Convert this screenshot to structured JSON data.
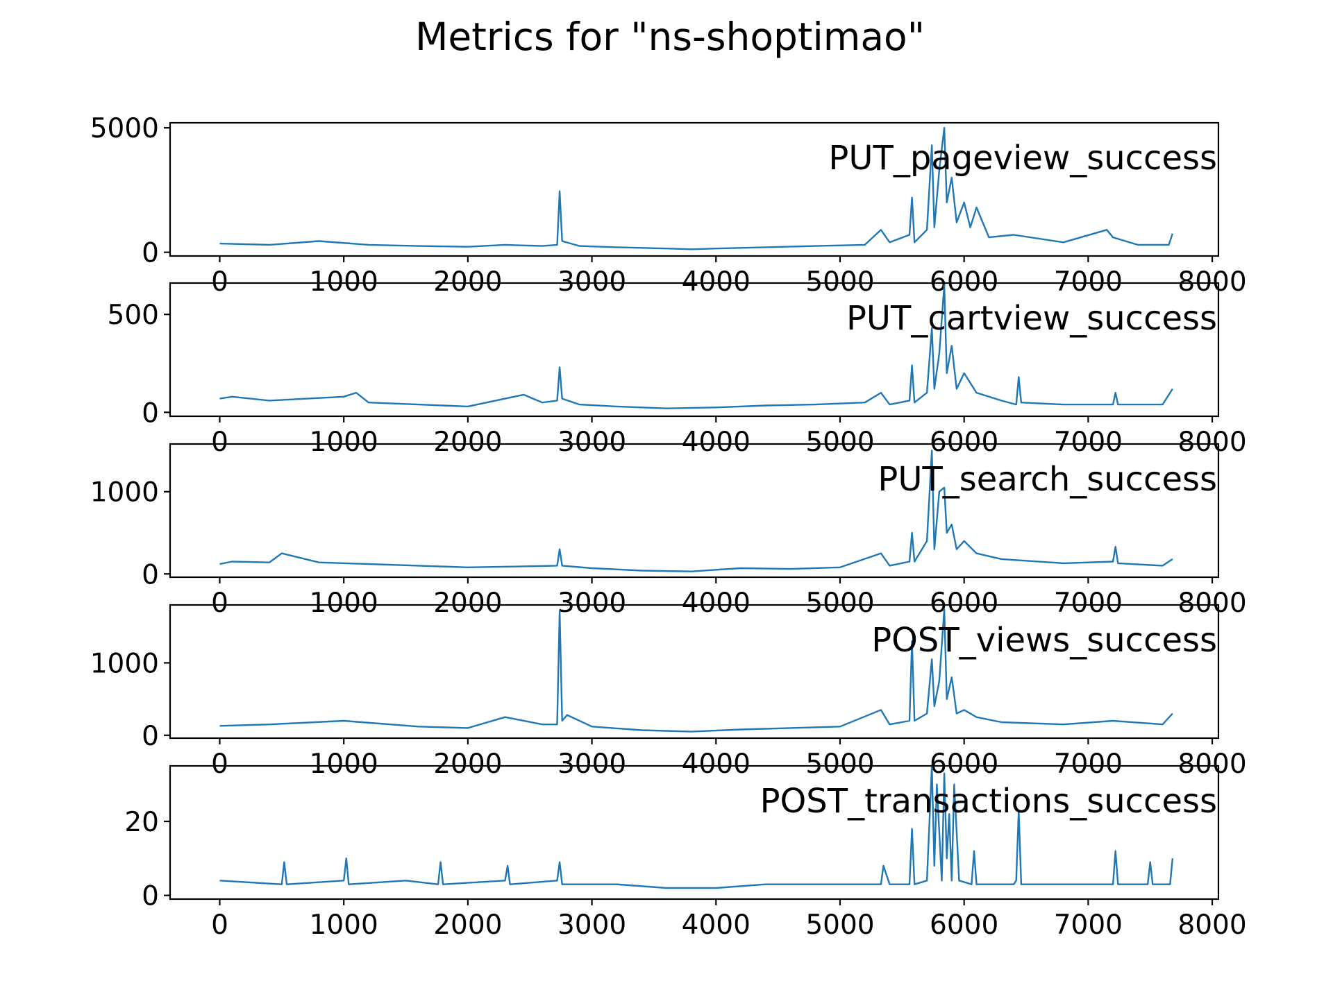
{
  "figure": {
    "title": "Metrics for \"ns-shoptimao\"",
    "line_color": "#1f77b4"
  },
  "chart_data": [
    {
      "type": "line",
      "label": "PUT_pageview_success",
      "xlim": [
        -400,
        8050
      ],
      "ylim": [
        -150,
        5200
      ],
      "x_ticks": [
        0,
        1000,
        2000,
        3000,
        4000,
        5000,
        6000,
        7000,
        8000
      ],
      "y_ticks": [
        0,
        5000
      ],
      "x": [
        0,
        400,
        800,
        1200,
        1600,
        2000,
        2300,
        2600,
        2720,
        2740,
        2760,
        2900,
        3200,
        3600,
        3800,
        4000,
        4400,
        4800,
        5200,
        5330,
        5400,
        5560,
        5580,
        5600,
        5700,
        5740,
        5760,
        5800,
        5840,
        5860,
        5900,
        5940,
        6000,
        6050,
        6100,
        6200,
        6400,
        6800,
        7150,
        7200,
        7400,
        7650,
        7680
      ],
      "y": [
        350,
        300,
        450,
        300,
        250,
        220,
        300,
        250,
        300,
        2450,
        450,
        250,
        200,
        150,
        120,
        150,
        200,
        250,
        300,
        900,
        400,
        700,
        2200,
        400,
        900,
        4300,
        1000,
        3300,
        5000,
        2000,
        3000,
        1200,
        2000,
        1000,
        1800,
        600,
        700,
        400,
        900,
        600,
        300,
        300,
        750
      ]
    },
    {
      "type": "line",
      "label": "PUT_cartview_success",
      "xlim": [
        -400,
        8050
      ],
      "ylim": [
        -20,
        660
      ],
      "x_ticks": [
        0,
        1000,
        2000,
        3000,
        4000,
        5000,
        6000,
        7000,
        8000
      ],
      "y_ticks": [
        0,
        500
      ],
      "x": [
        0,
        100,
        400,
        1000,
        1100,
        1200,
        1600,
        2000,
        2300,
        2450,
        2600,
        2720,
        2740,
        2760,
        2900,
        3200,
        3600,
        4000,
        4400,
        4800,
        5200,
        5330,
        5400,
        5560,
        5580,
        5600,
        5700,
        5740,
        5760,
        5800,
        5840,
        5860,
        5900,
        5940,
        6000,
        6100,
        6300,
        6420,
        6440,
        6460,
        6800,
        7200,
        7220,
        7240,
        7600,
        7680
      ],
      "y": [
        70,
        80,
        60,
        80,
        100,
        50,
        40,
        30,
        70,
        90,
        50,
        60,
        230,
        70,
        40,
        30,
        20,
        25,
        35,
        40,
        50,
        100,
        40,
        60,
        240,
        50,
        100,
        430,
        120,
        300,
        650,
        200,
        340,
        120,
        200,
        100,
        60,
        40,
        180,
        50,
        40,
        40,
        100,
        40,
        40,
        120
      ]
    },
    {
      "type": "line",
      "label": "PUT_search_success",
      "xlim": [
        -400,
        8050
      ],
      "ylim": [
        -40,
        1580
      ],
      "x_ticks": [
        0,
        1000,
        2000,
        3000,
        4000,
        5000,
        6000,
        7000,
        8000
      ],
      "y_ticks": [
        0,
        1000
      ],
      "x": [
        0,
        100,
        400,
        500,
        800,
        1200,
        1600,
        2000,
        2400,
        2720,
        2740,
        2760,
        3000,
        3400,
        3800,
        4200,
        4600,
        5000,
        5330,
        5400,
        5560,
        5580,
        5600,
        5700,
        5740,
        5760,
        5800,
        5840,
        5860,
        5900,
        5940,
        6000,
        6100,
        6300,
        6800,
        7200,
        7220,
        7240,
        7600,
        7680
      ],
      "y": [
        120,
        150,
        140,
        250,
        140,
        120,
        100,
        80,
        90,
        100,
        300,
        100,
        70,
        40,
        30,
        70,
        60,
        80,
        250,
        100,
        150,
        500,
        150,
        400,
        1500,
        300,
        1000,
        1050,
        500,
        600,
        300,
        400,
        250,
        180,
        130,
        150,
        330,
        130,
        100,
        180
      ]
    },
    {
      "type": "line",
      "label": "POST_views_success",
      "xlim": [
        -400,
        8050
      ],
      "ylim": [
        -40,
        1800
      ],
      "x_ticks": [
        0,
        1000,
        2000,
        3000,
        4000,
        5000,
        6000,
        7000,
        8000
      ],
      "y_ticks": [
        0,
        1000
      ],
      "x": [
        0,
        400,
        1000,
        1600,
        2000,
        2300,
        2600,
        2720,
        2740,
        2760,
        2800,
        3000,
        3400,
        3800,
        4200,
        4600,
        5000,
        5330,
        5400,
        5560,
        5580,
        5600,
        5700,
        5740,
        5760,
        5800,
        5840,
        5860,
        5900,
        5940,
        6000,
        6100,
        6300,
        6800,
        7200,
        7600,
        7680
      ],
      "y": [
        130,
        150,
        200,
        120,
        100,
        250,
        150,
        150,
        1720,
        200,
        280,
        120,
        70,
        50,
        80,
        100,
        120,
        350,
        150,
        200,
        1300,
        200,
        300,
        1050,
        400,
        750,
        1740,
        500,
        800,
        300,
        350,
        250,
        180,
        150,
        200,
        150,
        300
      ]
    },
    {
      "type": "line",
      "label": "POST_transactions_success",
      "xlim": [
        -400,
        8050
      ],
      "ylim": [
        -1,
        35
      ],
      "x_ticks": [
        0,
        1000,
        2000,
        3000,
        4000,
        5000,
        6000,
        7000,
        8000
      ],
      "y_ticks": [
        0,
        20
      ],
      "x": [
        0,
        500,
        520,
        540,
        1000,
        1020,
        1040,
        1500,
        1760,
        1780,
        1800,
        2300,
        2320,
        2340,
        2720,
        2740,
        2760,
        3200,
        3600,
        4000,
        4400,
        4800,
        5200,
        5330,
        5350,
        5400,
        5560,
        5580,
        5600,
        5700,
        5740,
        5760,
        5780,
        5820,
        5840,
        5860,
        5880,
        5900,
        5920,
        5960,
        6060,
        6080,
        6100,
        6400,
        6420,
        6440,
        6460,
        6800,
        7200,
        7220,
        7240,
        7480,
        7500,
        7520,
        7660,
        7680
      ],
      "y": [
        4,
        3,
        9,
        3,
        4,
        10,
        3,
        4,
        3,
        9,
        3,
        4,
        8,
        3,
        4,
        9,
        3,
        3,
        2,
        2,
        3,
        3,
        3,
        3,
        8,
        3,
        3,
        18,
        3,
        4,
        35,
        8,
        30,
        4,
        33,
        10,
        22,
        4,
        30,
        4,
        3,
        12,
        3,
        3,
        4,
        23,
        3,
        3,
        3,
        12,
        3,
        3,
        9,
        3,
        3,
        10
      ]
    }
  ]
}
